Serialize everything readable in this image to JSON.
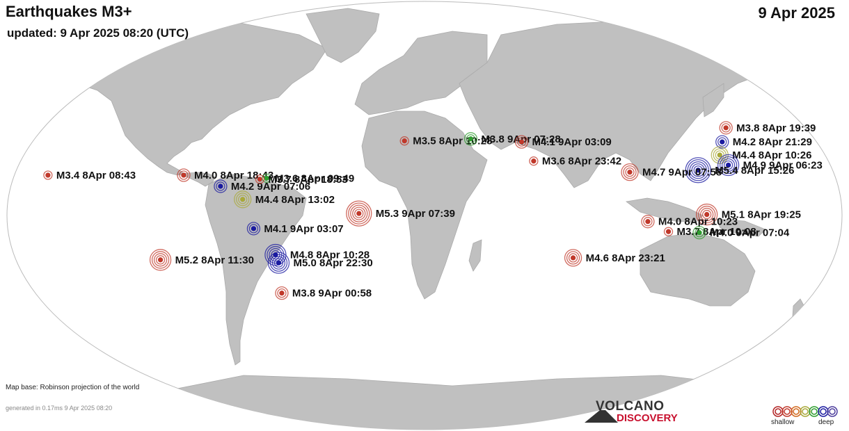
{
  "header": {
    "title": "Earthquakes M3+",
    "updated": "updated:  9 Apr 2025 08:20 (UTC)",
    "date": "9 Apr 2025"
  },
  "footer": {
    "map_base": "Map base: Robinson projection of the world",
    "generated": "generated in 0.17ms  9 Apr 2025 08:20",
    "logo_top": "VOLCANO",
    "logo_bottom": "DISCOVERY",
    "legend_shallow": "shallow",
    "legend_deep": "deep"
  },
  "colors": {
    "ocean": "#ffffff",
    "land": "#c0c0c0",
    "depth_scale": [
      "#b22222",
      "#c0392b",
      "#d2691e",
      "#a9a93a",
      "#2e9e2e",
      "#1a1aa0",
      "#4b3c9c"
    ]
  },
  "quakes": [
    {
      "label": "M3.8  8Apr 19:39",
      "lon": 146.0,
      "lat": 43.5,
      "depth": "shallow"
    },
    {
      "label": "M4.2  8Apr 21:29",
      "lon": 141.0,
      "lat": 36.5,
      "depth": "deep"
    },
    {
      "label": "M4.4  8Apr 10:26",
      "lon": 137.5,
      "lat": 30.0,
      "depth": "intermediate"
    },
    {
      "label": "M4.9  9Apr 06:23",
      "lon": 140.0,
      "lat": 25.0,
      "depth": "deep"
    },
    {
      "label": "M5.4  8Apr 15:26",
      "lon": 125.5,
      "lat": 22.5,
      "depth": "deep"
    },
    {
      "label": "M3.5  8Apr 10:28",
      "lon": -9.5,
      "lat": 37.0,
      "depth": "shallow"
    },
    {
      "label": "M3.8  9Apr 07:28",
      "lon": 22.0,
      "lat": 38.0,
      "depth": "mid"
    },
    {
      "label": "M4.1  9Apr 03:09",
      "lon": 46.0,
      "lat": 36.5,
      "depth": "shallow"
    },
    {
      "label": "M3.6  8Apr 23:42",
      "lon": 50.5,
      "lat": 27.0,
      "depth": "shallow"
    },
    {
      "label": "M4.7  9Apr 07:58",
      "lon": 94.0,
      "lat": 21.5,
      "depth": "shallow"
    },
    {
      "label": "M3.4  8Apr 08:43",
      "lon": -172.0,
      "lat": 20.0,
      "depth": "shallow"
    },
    {
      "label": "M4.0  8Apr 18:43",
      "lon": -110.0,
      "lat": 20.0,
      "depth": "shallow"
    },
    {
      "label": "M4.2  9Apr 07:06",
      "lon": -92.5,
      "lat": 14.5,
      "depth": "deep"
    },
    {
      "label": "M3.6  8Apr 09:49",
      "lon": -72.0,
      "lat": 18.5,
      "depth": "mid"
    },
    {
      "label": "M3.7  8Apr 18:53",
      "lon": -75.0,
      "lat": 18.0,
      "depth": "shallow"
    },
    {
      "label": "M4.4  8Apr 13:02",
      "lon": -82.0,
      "lat": 8.0,
      "depth": "intermediate"
    },
    {
      "label": "M5.3  9Apr 07:39",
      "lon": -29.5,
      "lat": 1.0,
      "depth": "shallow"
    },
    {
      "label": "M4.1  9Apr 03:07",
      "lon": -77.0,
      "lat": -6.5,
      "depth": "deep"
    },
    {
      "label": "M4.8  8Apr 10:28",
      "lon": -68.0,
      "lat": -19.5,
      "depth": "deep"
    },
    {
      "label": "M5.2  8Apr 11:30",
      "lon": -121.0,
      "lat": -22.0,
      "depth": "shallow"
    },
    {
      "label": "M5.0  8Apr 22:30",
      "lon": -67.0,
      "lat": -23.5,
      "depth": "deep"
    },
    {
      "label": "M3.8  9Apr 00:58",
      "lon": -68.0,
      "lat": -38.5,
      "depth": "shallow"
    },
    {
      "label": "M5.1  8Apr 19:25",
      "lon": 127.0,
      "lat": 0.5,
      "depth": "shallow"
    },
    {
      "label": "M4.0  8Apr 10:23",
      "lon": 100.5,
      "lat": -3.0,
      "depth": "shallow"
    },
    {
      "label": "M3.7  8Apr 10:08",
      "lon": 110.0,
      "lat": -8.0,
      "depth": "shallow"
    },
    {
      "label": "M4.0  9Apr 07:04",
      "lon": 124.0,
      "lat": -8.5,
      "depth": "mid"
    },
    {
      "label": "M4.6  8Apr 23:21",
      "lon": 68.0,
      "lat": -21.0,
      "depth": "shallow"
    }
  ]
}
